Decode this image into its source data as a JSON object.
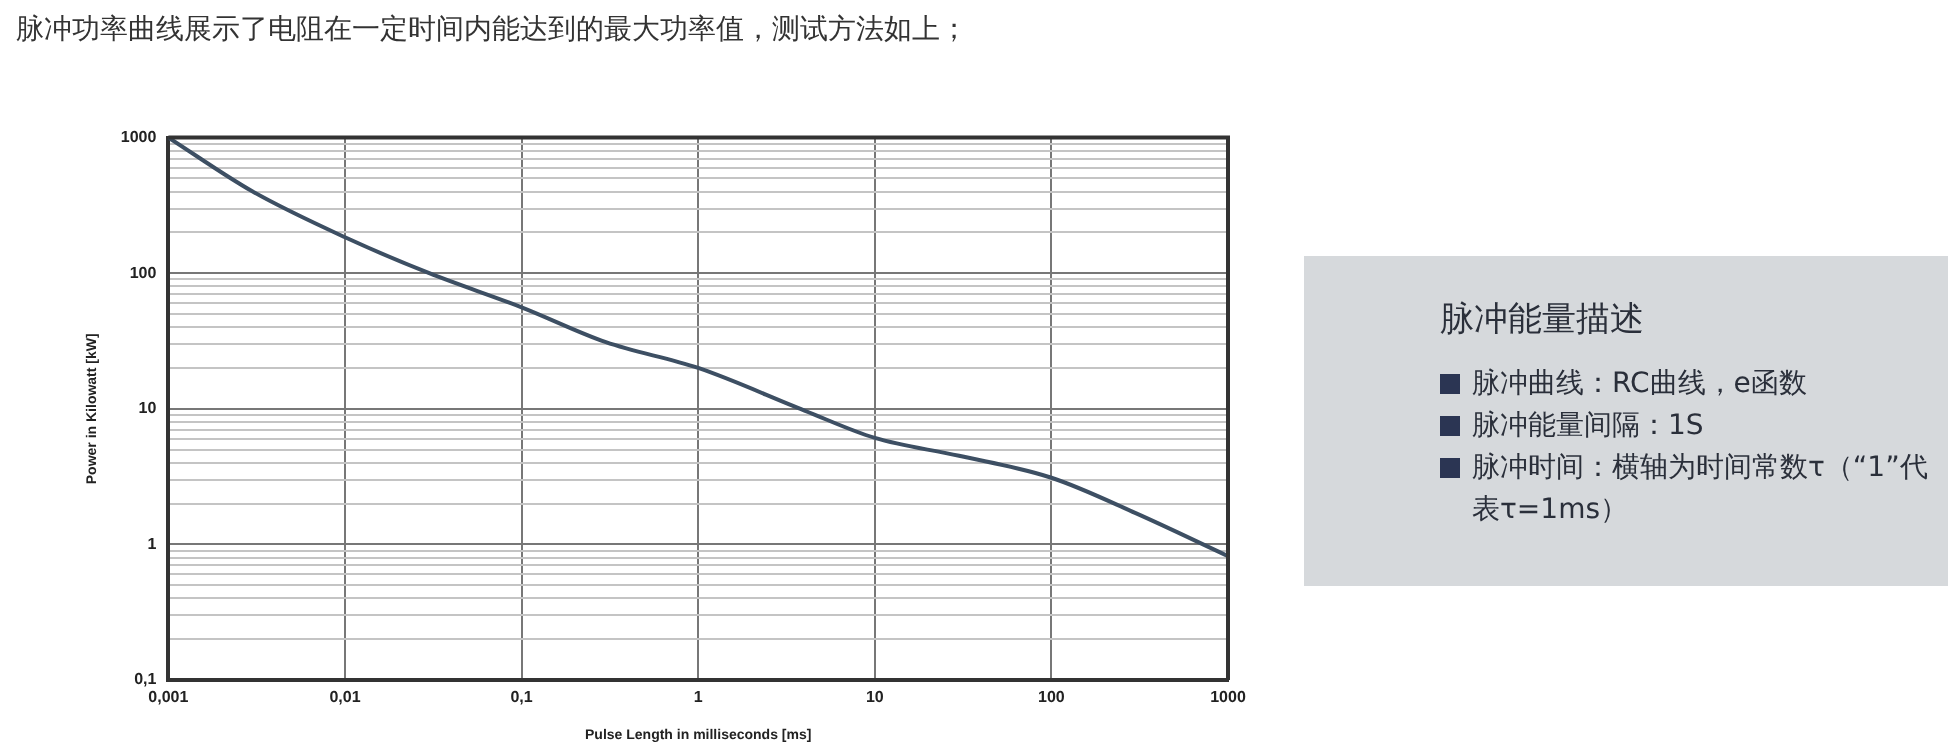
{
  "chart_data": {
    "type": "line",
    "title": "脉冲功率曲线展示了电阻在一定时间内能达到的最大功率值，测试方法如上；",
    "xlabel": "Pulse Length in milliseconds [ms]",
    "ylabel": "Power in Kilowatt [kW]",
    "annotations": [
      "脉冲能量描述",
      "脉冲曲线：RC曲线，e函数",
      "脉冲能量间隔：1S",
      "脉冲时间：横轴为时间常数τ（“1”代表τ=1ms）"
    ],
    "x": [
      0.001,
      0.003,
      0.01,
      0.03,
      0.1,
      0.3,
      1,
      4,
      10,
      30,
      100,
      300,
      1000
    ],
    "series": [
      {
        "color": "#3d4f63",
        "values": [
          1000,
          400,
          184,
          100,
          56,
          31,
          20,
          9.7,
          6.1,
          4.5,
          3.1,
          1.7,
          0.82
        ]
      }
    ],
    "log": "xy",
    "xlim": [
      0.001,
      1000
    ],
    "ylim": [
      0.1,
      1000
    ],
    "xticks": [
      {
        "value": 0.001,
        "label": "0,001"
      },
      {
        "value": 0.01,
        "label": "0,01"
      },
      {
        "value": 0.1,
        "label": "0,1"
      },
      1,
      10,
      100,
      1000
    ],
    "yticks": [
      {
        "value": 0.1,
        "label": "0,1"
      },
      {
        "value": 0.2,
        "label": null
      },
      {
        "value": 0.3,
        "label": null
      },
      {
        "value": 0.4,
        "label": null
      },
      {
        "value": 0.5,
        "label": null
      },
      {
        "value": 0.6,
        "label": null
      },
      {
        "value": 0.7,
        "label": null
      },
      {
        "value": 0.8,
        "label": null
      },
      {
        "value": 0.9,
        "label": null
      },
      1,
      {
        "value": 2,
        "label": null
      },
      {
        "value": 3,
        "label": null
      },
      {
        "value": 4,
        "label": null
      },
      {
        "value": 5,
        "label": null
      },
      {
        "value": 6,
        "label": null
      },
      {
        "value": 7,
        "label": null
      },
      {
        "value": 8,
        "label": null
      },
      {
        "value": 9,
        "label": null
      },
      10,
      {
        "value": 20,
        "label": null
      },
      {
        "value": 30,
        "label": null
      },
      {
        "value": 40,
        "label": null
      },
      {
        "value": 50,
        "label": null
      },
      {
        "value": 60,
        "label": null
      },
      {
        "value": 70,
        "label": null
      },
      {
        "value": 80,
        "label": null
      },
      {
        "value": 90,
        "label": null
      },
      100,
      {
        "value": 200,
        "label": null
      },
      {
        "value": 300,
        "label": null
      },
      {
        "value": 400,
        "label": null
      },
      {
        "value": 500,
        "label": null
      },
      {
        "value": 600,
        "label": null
      },
      {
        "value": 700,
        "label": null
      },
      {
        "value": 800,
        "label": null
      },
      {
        "value": 900,
        "label": null
      },
      1000
    ],
    "grid": true,
    "legend": false,
    "marker": "none",
    "line_style": "solid"
  }
}
